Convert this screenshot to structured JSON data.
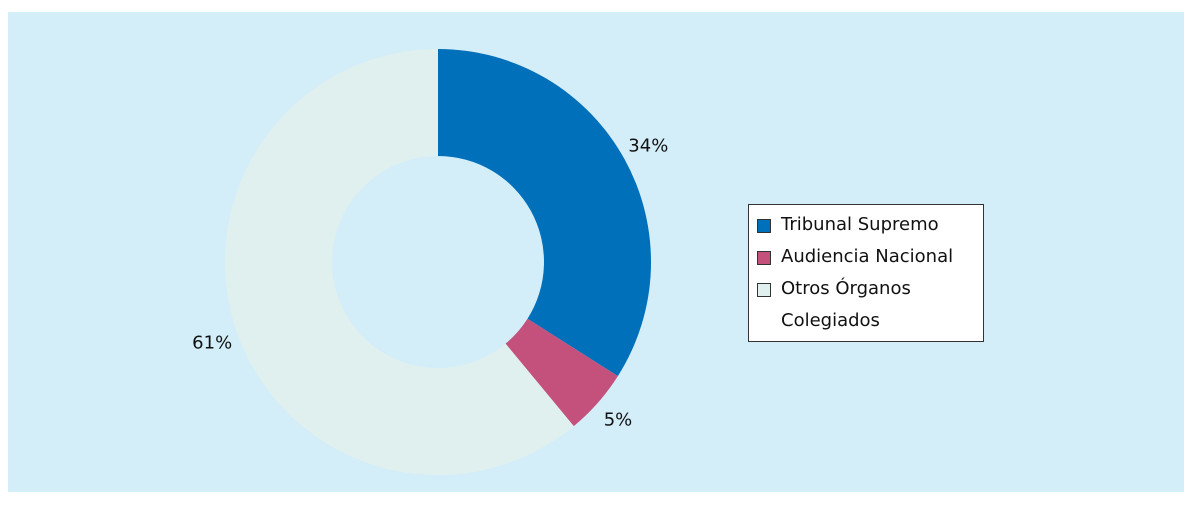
{
  "chart_data": {
    "type": "donut",
    "categories": [
      "Tribunal Supremo",
      "Audiencia Nacional",
      "Otros Órganos Colegiados"
    ],
    "values": [
      34,
      5,
      61
    ],
    "value_labels": [
      "34%",
      "5%",
      "61%"
    ],
    "colors": [
      "#0070ba",
      "#c4507c",
      "#e0f0ee"
    ],
    "legend": "right"
  }
}
